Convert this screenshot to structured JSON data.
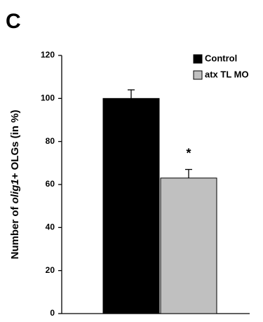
{
  "panel_label": "C",
  "chart_data": {
    "type": "bar",
    "ylabel": [
      "Number of ",
      "olig1",
      "+ OLGs (in %)"
    ],
    "categories": [
      null
    ],
    "series": [
      {
        "name": "Control",
        "color": "#000000",
        "values": [
          100
        ],
        "errors": [
          4
        ]
      },
      {
        "name": "atx TL MO",
        "color": "#c0c0c0",
        "values": [
          63
        ],
        "errors": [
          4
        ]
      }
    ],
    "annotations": [
      "*"
    ],
    "ylim": [
      0,
      120
    ],
    "yticks": [
      0,
      20,
      40,
      60,
      80,
      100,
      120
    ],
    "legend": "top-right"
  }
}
